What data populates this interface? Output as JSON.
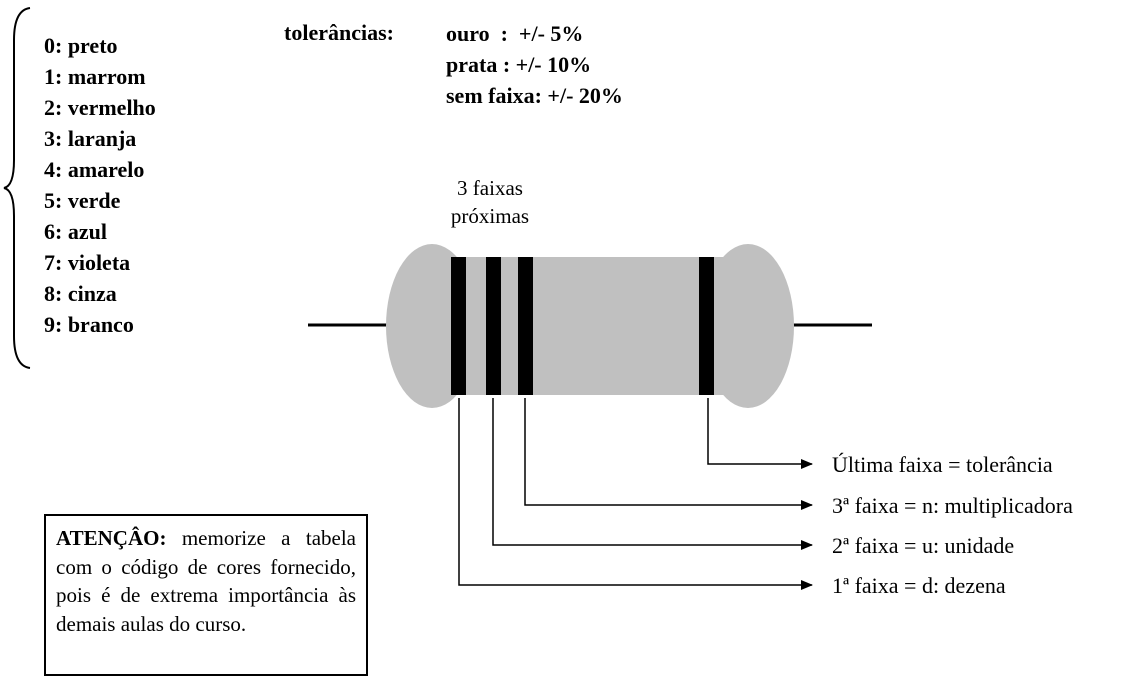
{
  "color_codes": [
    "0: preto",
    "1: marrom",
    "2: vermelho",
    "3: laranja",
    "4: amarelo",
    "5: verde",
    "6: azul",
    "7: violeta",
    "8: cinza",
    "9: branco"
  ],
  "tolerances": {
    "title": "tolerâncias:",
    "items": [
      "ouro  :  +/- 5%",
      "prata : +/- 10%",
      "sem faixa: +/- 20%"
    ]
  },
  "resistor": {
    "bands_note_line1": "3 faixas",
    "bands_note_line2": "próximas",
    "body_color": "#c0c0c0",
    "band_color": "#000000"
  },
  "band_labels": [
    "Última faixa = tolerância",
    "3ª faixa = n: multiplicadora",
    "2ª faixa = u: unidade",
    "1ª faixa = d: dezena"
  ],
  "attention": {
    "heading": "ATENÇÂO:",
    "text": "memorize a tabela com o código de cores fornecido, pois é de extrema importância às demais aulas do curso."
  }
}
